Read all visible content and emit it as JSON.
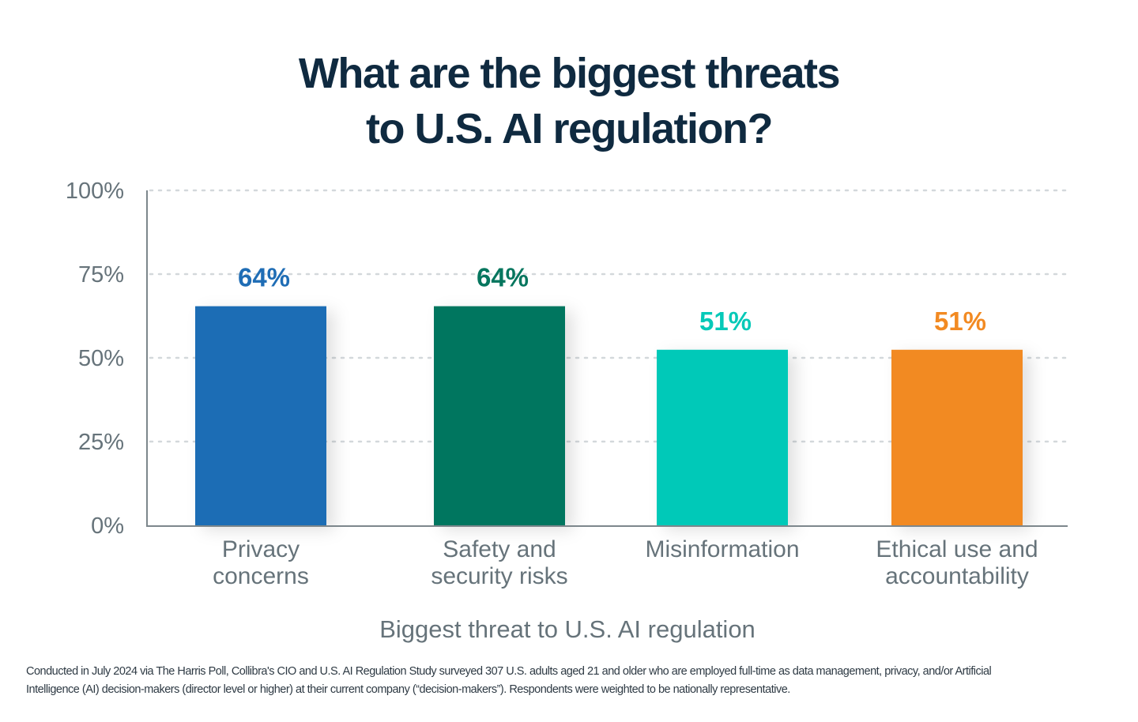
{
  "chart_data": {
    "type": "bar",
    "title": "What are the biggest threats to U.S. AI regulation?",
    "title_lines": [
      "What are the biggest threats",
      "to U.S. AI regulation?"
    ],
    "categories": [
      "Privacy concerns",
      "Safety and security risks",
      "Misinformation",
      "Ethical use and accountability"
    ],
    "category_lines": [
      [
        "Privacy",
        "concerns"
      ],
      [
        "Safety and",
        "security risks"
      ],
      [
        "Misinformation"
      ],
      [
        "Ethical use and",
        "accountability"
      ]
    ],
    "values": [
      64,
      64,
      51,
      51
    ],
    "value_labels": [
      "64%",
      "64%",
      "51%",
      "51%"
    ],
    "colors": [
      "#1f6db5",
      "#06765e",
      "#05c9b8",
      "#f28a22"
    ],
    "xlabel": "Biggest threat to U.S. AI regulation",
    "ylabel": "",
    "ylim": [
      0,
      100
    ],
    "yticks": [
      0,
      25,
      50,
      75,
      100
    ],
    "ytick_labels": [
      "0%",
      "25%",
      "50%",
      "75%",
      "100%"
    ],
    "grid": true,
    "legend": "none"
  },
  "footnote": {
    "lines": [
      "Conducted in July 2024 via The Harris Poll, Collibra's CIO and U.S. AI Regulation Study surveyed 307 U.S. adults aged 21 and older who are employed full-time as data management, privacy, and/or Artificial",
      "Intelligence (AI) decision-makers (director level or higher) at their current company (“decision-makers”). Respondents were weighted to be nationally representative."
    ]
  }
}
